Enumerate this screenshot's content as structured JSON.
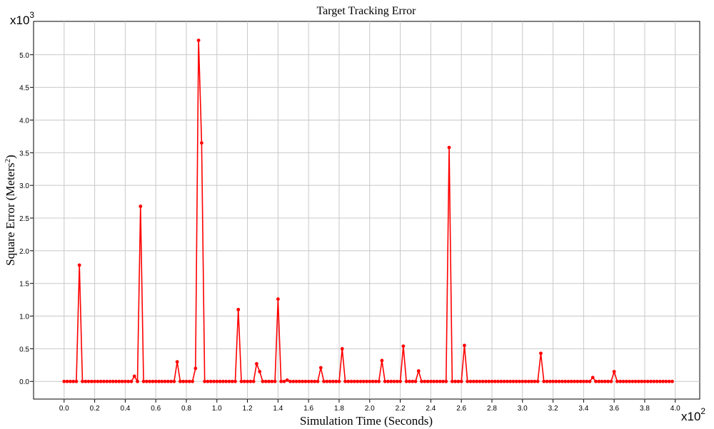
{
  "chart_data": {
    "type": "line",
    "title": "Target Tracking Error",
    "xlabel": "Simulation Time (Seconds)",
    "ylabel_parts": [
      "Square Error (Meters",
      "2",
      ")"
    ],
    "x_multiplier": {
      "base": "x10",
      "exponent": "2"
    },
    "y_multiplier": {
      "base": "x10",
      "exponent": "3"
    },
    "color": "#ff0000",
    "grid": true,
    "xlim": [
      -0.2,
      4.16
    ],
    "ylim": [
      -0.27,
      5.51
    ],
    "xticks": [
      {
        "value": 0,
        "label": "0.0"
      },
      0.2,
      0.4,
      0.6,
      0.8,
      {
        "value": 1,
        "label": "1.0"
      },
      1.2,
      1.4,
      1.6,
      1.8,
      {
        "value": 2,
        "label": "2.0"
      },
      2.2,
      2.4,
      2.6,
      2.8,
      {
        "value": 3,
        "label": "3.0"
      },
      3.2,
      3.4,
      3.6,
      3.8,
      {
        "value": 4,
        "label": "4.0"
      }
    ],
    "yticks": [
      {
        "value": 0,
        "label": "0.0"
      },
      0.5,
      {
        "value": 1,
        "label": "1.0"
      },
      1.5,
      {
        "value": 2,
        "label": "2.0"
      },
      2.5,
      {
        "value": 3,
        "label": "3.0"
      },
      3.5,
      {
        "value": 4,
        "label": "4.0"
      },
      4.5,
      {
        "value": 5,
        "label": "5.0"
      }
    ],
    "x": [
      0,
      0.02,
      0.04,
      0.06,
      0.08,
      0.1,
      0.12,
      0.14,
      0.16,
      0.18,
      0.2,
      0.22,
      0.24,
      0.26,
      0.28,
      0.3,
      0.32,
      0.34,
      0.36,
      0.38,
      0.4,
      0.42,
      0.44,
      0.46,
      0.48,
      0.5,
      0.52,
      0.54,
      0.56,
      0.58,
      0.6,
      0.62,
      0.64,
      0.66,
      0.68,
      0.7,
      0.72,
      0.74,
      0.76,
      0.78,
      0.8,
      0.82,
      0.84,
      0.86,
      0.88,
      0.9,
      0.92,
      0.94,
      0.96,
      0.98,
      1,
      1.02,
      1.04,
      1.06,
      1.08,
      1.1,
      1.12,
      1.14,
      1.16,
      1.18,
      1.2,
      1.22,
      1.24,
      1.26,
      1.28,
      1.3,
      1.32,
      1.34,
      1.36,
      1.38,
      1.4,
      1.42,
      1.44,
      1.46,
      1.48,
      1.5,
      1.52,
      1.54,
      1.56,
      1.58,
      1.6,
      1.62,
      1.64,
      1.66,
      1.68,
      1.7,
      1.72,
      1.74,
      1.76,
      1.78,
      1.8,
      1.82,
      1.84,
      1.86,
      1.88,
      1.9,
      1.92,
      1.94,
      1.96,
      1.98,
      2,
      2.02,
      2.04,
      2.06,
      2.08,
      2.1,
      2.12,
      2.14,
      2.16,
      2.18,
      2.2,
      2.22,
      2.24,
      2.26,
      2.28,
      2.3,
      2.32,
      2.34,
      2.36,
      2.38,
      2.4,
      2.42,
      2.44,
      2.46,
      2.48,
      2.5,
      2.52,
      2.54,
      2.56,
      2.58,
      2.6,
      2.62,
      2.64,
      2.66,
      2.68,
      2.7,
      2.72,
      2.74,
      2.76,
      2.78,
      2.8,
      2.82,
      2.84,
      2.86,
      2.88,
      2.9,
      2.92,
      2.94,
      2.96,
      2.98,
      3,
      3.02,
      3.04,
      3.06,
      3.08,
      3.1,
      3.12,
      3.14,
      3.16,
      3.18,
      3.2,
      3.22,
      3.24,
      3.26,
      3.28,
      3.3,
      3.32,
      3.34,
      3.36,
      3.38,
      3.4,
      3.42,
      3.44,
      3.46,
      3.48,
      3.5,
      3.52,
      3.54,
      3.56,
      3.58,
      3.6,
      3.62,
      3.64,
      3.66,
      3.68,
      3.7,
      3.72,
      3.74,
      3.76,
      3.78,
      3.8,
      3.82,
      3.84,
      3.86,
      3.88,
      3.9,
      3.92,
      3.94,
      3.96,
      3.98
    ],
    "values": [
      0,
      0,
      0,
      0,
      0,
      1.78,
      0,
      0,
      0,
      0,
      0,
      0,
      0,
      0,
      0,
      0,
      0,
      0,
      0,
      0,
      0,
      0,
      0,
      0.08,
      0,
      2.68,
      0,
      0,
      0,
      0,
      0,
      0,
      0,
      0,
      0,
      0,
      0,
      0.3,
      0,
      0,
      0,
      0,
      0,
      0.2,
      5.22,
      3.65,
      0,
      0,
      0,
      0,
      0,
      0,
      0,
      0,
      0,
      0,
      0,
      1.1,
      0,
      0,
      0,
      0,
      0,
      0.27,
      0.15,
      0,
      0,
      0,
      0,
      0,
      1.26,
      0,
      0,
      0.02,
      0,
      0,
      0,
      0,
      0,
      0,
      0,
      0,
      0,
      0,
      0.21,
      0,
      0,
      0,
      0,
      0,
      0,
      0.5,
      0,
      0,
      0,
      0,
      0,
      0,
      0,
      0,
      0,
      0,
      0,
      0,
      0.32,
      0,
      0,
      0,
      0,
      0,
      0,
      0.54,
      0,
      0,
      0,
      0,
      0.16,
      0,
      0,
      0,
      0,
      0,
      0,
      0,
      0,
      0,
      3.58,
      0,
      0,
      0,
      0,
      0.55,
      0,
      0,
      0,
      0,
      0,
      0,
      0,
      0,
      0,
      0,
      0,
      0,
      0,
      0,
      0,
      0,
      0,
      0,
      0,
      0,
      0,
      0,
      0,
      0,
      0.43,
      0,
      0,
      0,
      0,
      0,
      0,
      0,
      0,
      0,
      0,
      0,
      0,
      0,
      0,
      0,
      0,
      0.06,
      0,
      0,
      0,
      0,
      0,
      0,
      0.15,
      0,
      0,
      0,
      0,
      0,
      0,
      0,
      0,
      0,
      0,
      0,
      0,
      0,
      0,
      0,
      0,
      0,
      0,
      0
    ]
  }
}
